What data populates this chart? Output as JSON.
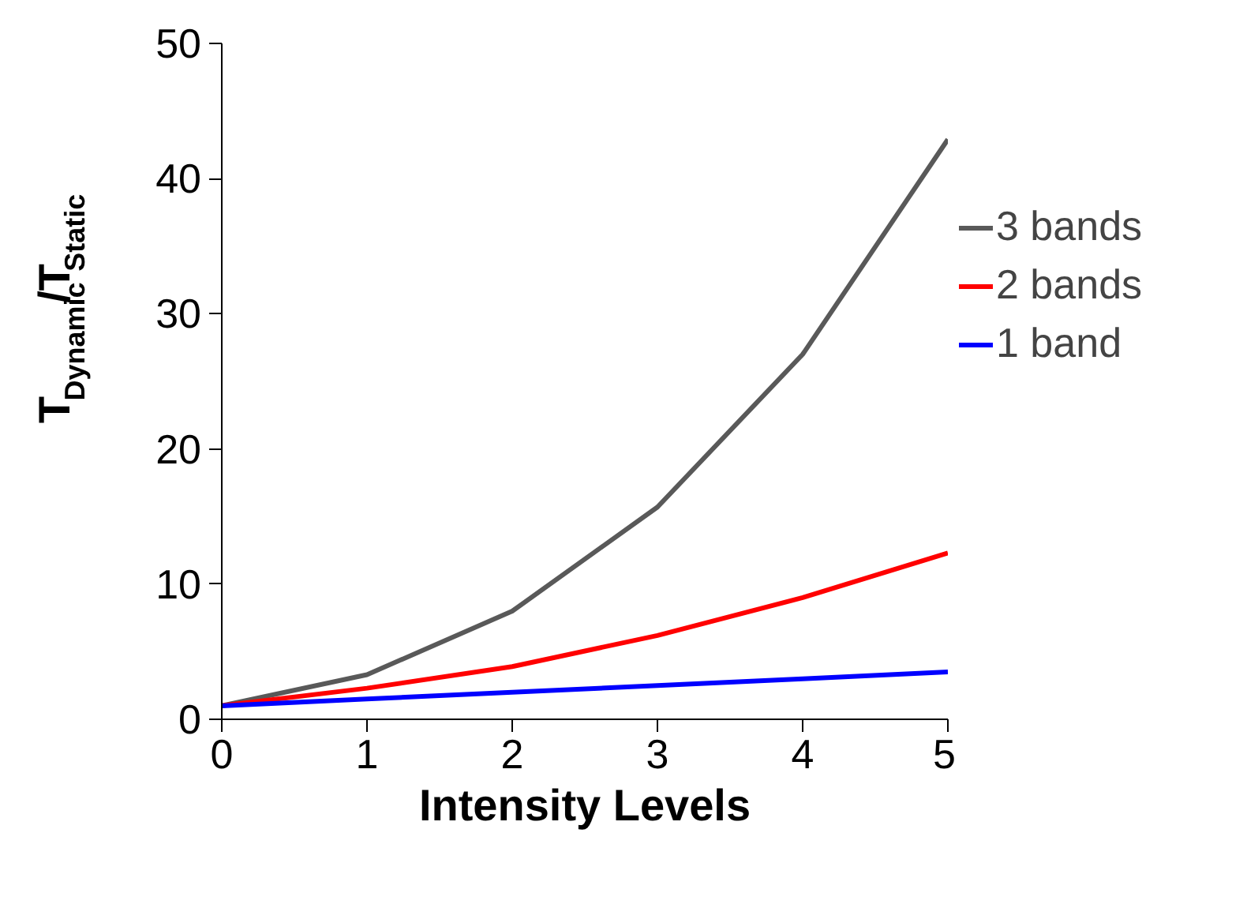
{
  "chart_data": {
    "type": "line",
    "xlabel": "Intensity Levels",
    "ylabel": "T$_{Dynamic}$/T$_{Static}$",
    "x": [
      0,
      1,
      2,
      3,
      4,
      5
    ],
    "series": [
      {
        "name": "3 bands",
        "color": "#595959",
        "values": [
          1,
          3.3,
          8,
          15.7,
          27,
          42.9
        ]
      },
      {
        "name": "2 bands",
        "color": "#ff0000",
        "values": [
          1,
          2.3,
          3.9,
          6.2,
          9,
          12.3
        ]
      },
      {
        "name": "1 band",
        "color": "#0000ff",
        "values": [
          1,
          1.5,
          2,
          2.5,
          3,
          3.5
        ]
      }
    ],
    "xlim": [
      0,
      5
    ],
    "xticks": [
      0,
      1,
      2,
      3,
      4,
      5
    ],
    "ylim": [
      0,
      50
    ],
    "yticks": [
      0,
      10,
      20,
      30,
      40,
      50
    ],
    "grid": false,
    "legend": "right",
    "marker": "none",
    "line_style": "solid"
  }
}
